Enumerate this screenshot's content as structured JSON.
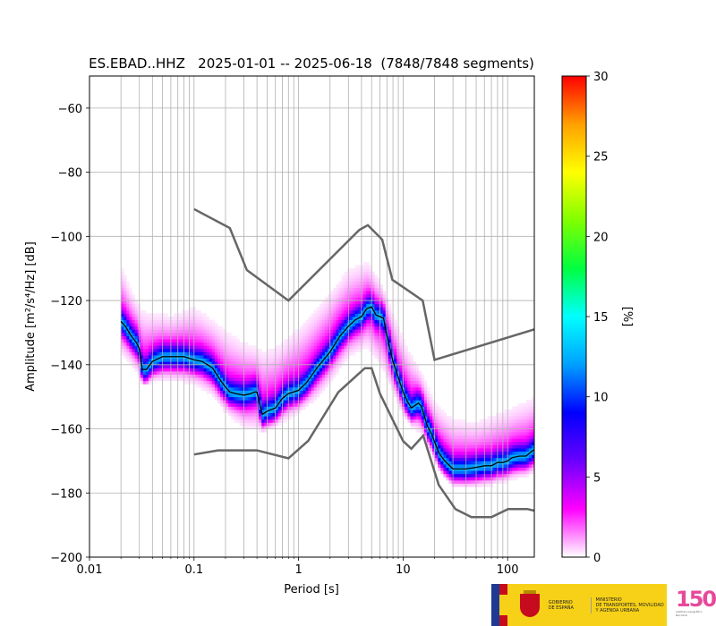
{
  "chart_data": {
    "type": "heatmap",
    "title": "ES.EBAD..HHZ   2025-01-01 -- 2025-06-18  (7848/7848 segments)",
    "xlabel": "Period [s]",
    "ylabel": "Amplitude [m²/s⁴/Hz] [dB]",
    "xscale": "log",
    "xlim": [
      0.01,
      180
    ],
    "ylim": [
      -200,
      -50
    ],
    "xticks": [
      {
        "value": 0.01,
        "label": "0.01"
      },
      {
        "value": 0.1,
        "label": "0.1"
      },
      {
        "value": 1,
        "label": "1"
      },
      {
        "value": 10,
        "label": "10"
      },
      {
        "value": 100,
        "label": "100"
      }
    ],
    "yticks": [
      {
        "value": -60,
        "label": "−60"
      },
      {
        "value": -80,
        "label": "−80"
      },
      {
        "value": -100,
        "label": "−100"
      },
      {
        "value": -120,
        "label": "−120"
      },
      {
        "value": -140,
        "label": "−140"
      },
      {
        "value": -160,
        "label": "−160"
      },
      {
        "value": -180,
        "label": "−180"
      },
      {
        "value": -200,
        "label": "−200"
      }
    ],
    "grid": true,
    "colorbar": {
      "label": "[%]",
      "range": [
        0,
        30
      ],
      "ticks": [
        {
          "value": 0,
          "label": "0"
        },
        {
          "value": 5,
          "label": "5"
        },
        {
          "value": 10,
          "label": "10"
        },
        {
          "value": 15,
          "label": "15"
        },
        {
          "value": 20,
          "label": "20"
        },
        {
          "value": 25,
          "label": "25"
        },
        {
          "value": 30,
          "label": "30"
        }
      ],
      "colors": [
        "#ffffff",
        "#ff00ff",
        "#6a00ff",
        "#0000ff",
        "#00a0ff",
        "#00ffff",
        "#00ff40",
        "#80ff00",
        "#ffff00",
        "#ffa000",
        "#ff0000"
      ]
    },
    "mode_curve": {
      "x": [
        0.02,
        0.022,
        0.025,
        0.028,
        0.03,
        0.032,
        0.035,
        0.04,
        0.05,
        0.06,
        0.07,
        0.08,
        0.1,
        0.12,
        0.15,
        0.18,
        0.2,
        0.22,
        0.25,
        0.3,
        0.35,
        0.38,
        0.4,
        0.45,
        0.5,
        0.6,
        0.7,
        0.8,
        1.0,
        1.2,
        1.5,
        2.0,
        2.5,
        3.0,
        3.5,
        4.0,
        4.5,
        5.0,
        5.5,
        6.0,
        6.5,
        7.0,
        8.0,
        9.0,
        10,
        11,
        12,
        14,
        15,
        17,
        19,
        20,
        22,
        25,
        30,
        35,
        40,
        50,
        60,
        70,
        80,
        90,
        100,
        110,
        130,
        150,
        170,
        180
      ],
      "y": [
        -126.5,
        -128,
        -131,
        -133,
        -135,
        -141.5,
        -141.5,
        -139,
        -137.5,
        -137.5,
        -137.5,
        -137.5,
        -138.5,
        -139,
        -141,
        -145,
        -147,
        -148.5,
        -149,
        -149.5,
        -149,
        -148.5,
        -148.5,
        -155.5,
        -154.5,
        -153.5,
        -150.5,
        -149,
        -148,
        -145.5,
        -141,
        -136,
        -131,
        -128,
        -126,
        -125,
        -122.5,
        -122,
        -124.5,
        -125,
        -125.5,
        -131,
        -139,
        -144,
        -148.5,
        -151.5,
        -153.5,
        -152,
        -153,
        -159,
        -162,
        -164,
        -167.5,
        -170,
        -172.5,
        -172.5,
        -172.5,
        -172,
        -171.5,
        -171.5,
        -170.5,
        -170.5,
        -170,
        -169,
        -168.5,
        -168.5,
        -167,
        -166.5
      ]
    },
    "high_noise_model": {
      "x": [
        0.1,
        0.22,
        0.32,
        0.8,
        3.8,
        4.6,
        6.3,
        7.9,
        15.4,
        20,
        180
      ],
      "y": [
        -91.5,
        -97.4,
        -110.5,
        -120,
        -98,
        -96.5,
        -101,
        -113.5,
        -120,
        -138.5,
        -129
      ]
    },
    "low_noise_model": {
      "x": [
        0.1,
        0.17,
        0.4,
        0.8,
        1.24,
        2.4,
        4.3,
        5.0,
        6.0,
        10,
        12,
        15.6,
        21.9,
        31.6,
        45,
        70,
        101,
        154,
        180
      ],
      "y": [
        -168,
        -166.7,
        -166.7,
        -169.2,
        -163.7,
        -148.6,
        -141.1,
        -141.1,
        -149,
        -163.8,
        -166.2,
        -162.1,
        -177.5,
        -185,
        -187.5,
        -187.5,
        -185,
        -185,
        -185.5
      ]
    },
    "density_envelope": {
      "x": [
        0.02,
        0.025,
        0.03,
        0.04,
        0.06,
        0.1,
        0.15,
        0.2,
        0.3,
        0.4,
        0.5,
        0.7,
        1.0,
        1.5,
        2.0,
        3.0,
        4.5,
        6.0,
        8.0,
        10,
        15,
        20,
        30,
        50,
        100,
        180
      ],
      "upper": [
        -107,
        -115,
        -120,
        -122,
        -123,
        -120,
        -124,
        -127,
        -131,
        -133,
        -133,
        -131,
        -126,
        -120,
        -115,
        -108,
        -106,
        -112,
        -122,
        -130,
        -141,
        -150,
        -155,
        -156,
        -152,
        -148
      ],
      "lower": [
        -138,
        -141,
        -145,
        -146,
        -146,
        -147,
        -151,
        -156,
        -161,
        -162,
        -161,
        -159,
        -156,
        -152,
        -147,
        -139,
        -136,
        -142,
        -150,
        -157,
        -163,
        -170,
        -178,
        -179,
        -177,
        -175
      ]
    }
  }
}
